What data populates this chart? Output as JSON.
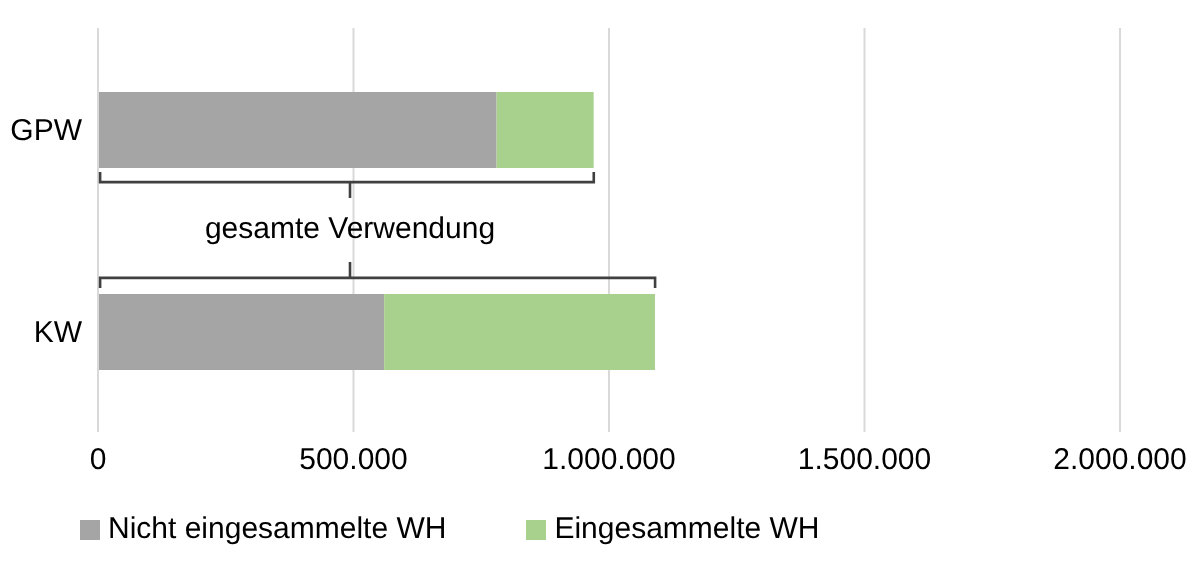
{
  "chart_data": {
    "type": "bar",
    "orientation": "horizontal",
    "stacked": true,
    "categories": [
      "GPW",
      "KW"
    ],
    "series": [
      {
        "name": "Nicht eingesammelte WH",
        "color": "#a5a5a5",
        "values": [
          780000,
          560000
        ]
      },
      {
        "name": "Eingesammelte WH",
        "color": "#a9d18e",
        "values": [
          190000,
          530000
        ]
      }
    ],
    "xlim": [
      0,
      2000000
    ],
    "xticks": [
      {
        "value": 0,
        "label": "0"
      },
      {
        "value": 500000,
        "label": "500.000"
      },
      {
        "value": 1000000,
        "label": "1.000.000"
      },
      {
        "value": 1500000,
        "label": "1.500.000"
      },
      {
        "value": 2000000,
        "label": "2.000.000"
      }
    ],
    "grid": "x",
    "legend": "bottom",
    "annotations": [
      "gesamte Verwendung"
    ]
  }
}
